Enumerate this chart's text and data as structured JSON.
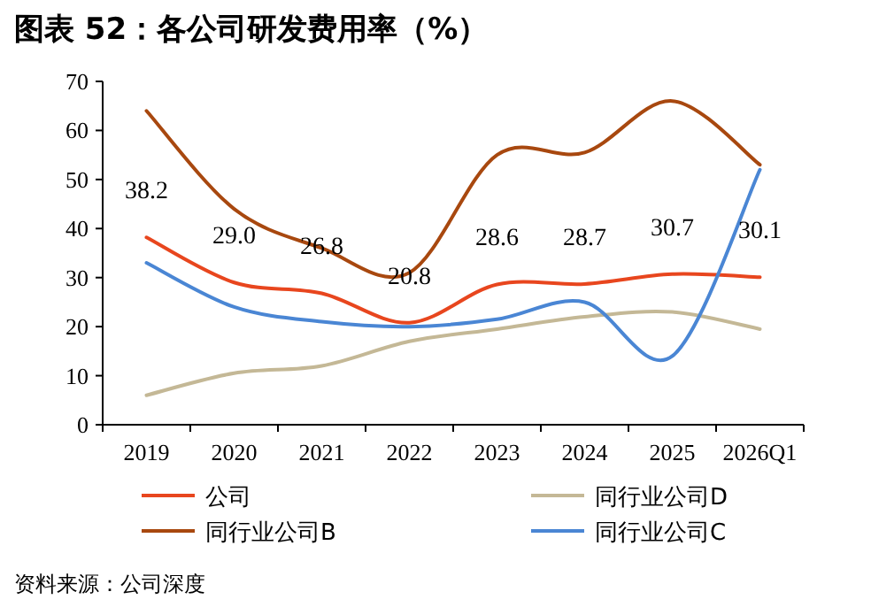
{
  "chart_data": {
    "type": "line",
    "title": "图表 52：各公司研发费用率（%）",
    "categories": [
      "2019",
      "2020",
      "2021",
      "2022",
      "2023",
      "2024",
      "2025",
      "2026Q1"
    ],
    "series": [
      {
        "name": "公司",
        "color": "#e8461e",
        "values": [
          38.2,
          29.0,
          26.8,
          20.8,
          28.6,
          28.7,
          30.7,
          30.1
        ],
        "value_labels": [
          "38.2",
          "29.0",
          "26.8",
          "20.8",
          "28.6",
          "28.7",
          "30.7",
          "30.1"
        ]
      },
      {
        "name": "同行业公司D",
        "color": "#c4b896",
        "values": [
          6,
          10.5,
          12,
          17,
          19.5,
          22,
          23,
          19.5
        ]
      },
      {
        "name": "同行业公司B",
        "color": "#a8480f",
        "values": [
          64,
          44,
          36,
          31,
          55,
          55.5,
          66,
          53
        ]
      },
      {
        "name": "同行业公司C",
        "color": "#4a86d4",
        "values": [
          33,
          24,
          21,
          20,
          21.5,
          25,
          14,
          52
        ]
      }
    ],
    "ylim": [
      0,
      70
    ],
    "yticks": [
      0,
      10,
      20,
      30,
      40,
      50,
      60,
      70
    ],
    "grid": false,
    "legend": "bottom",
    "marker": "none",
    "line_style": "solid",
    "annotations": [
      "资料来源：公司深度"
    ]
  }
}
